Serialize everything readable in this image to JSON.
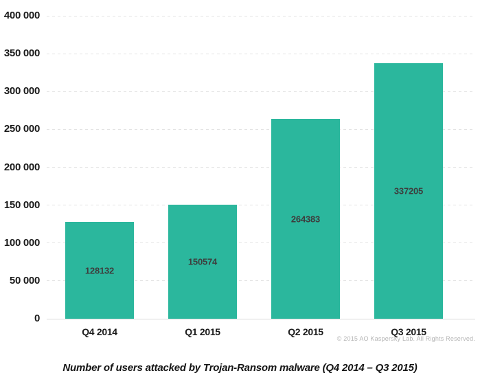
{
  "chart_data": {
    "type": "bar",
    "title": "Number of users attacked by Trojan-Ransom malware (Q4 2014 – Q3 2015)",
    "categories": [
      "Q4 2014",
      "Q1 2015",
      "Q2 2015",
      "Q3 2015"
    ],
    "values": [
      128132,
      150574,
      264383,
      337205
    ],
    "value_labels": [
      "128132",
      "150574",
      "264383",
      "337205"
    ],
    "ylim": [
      0,
      400000
    ],
    "yticks": [
      {
        "value": 0,
        "label": "0"
      },
      {
        "value": 50000,
        "label": "50 000"
      },
      {
        "value": 100000,
        "label": "100 000"
      },
      {
        "value": 150000,
        "label": "150 000"
      },
      {
        "value": 200000,
        "label": "200 000"
      },
      {
        "value": 250000,
        "label": "250 000"
      },
      {
        "value": 300000,
        "label": "300 000"
      },
      {
        "value": 350000,
        "label": "350 000"
      },
      {
        "value": 400000,
        "label": "400 000"
      }
    ],
    "xlabel": "",
    "ylabel": "",
    "legend": "none",
    "grid": "horizontal-dashed",
    "bar_color": "#2bb79d",
    "value_label_color": "#3d3d3d",
    "grid_color": "#e3e3e3",
    "axis_line_color": "#d9d9d9"
  },
  "copyright": {
    "text": "© 2015 AO Kaspersky Lab. All Rights Reserved."
  }
}
